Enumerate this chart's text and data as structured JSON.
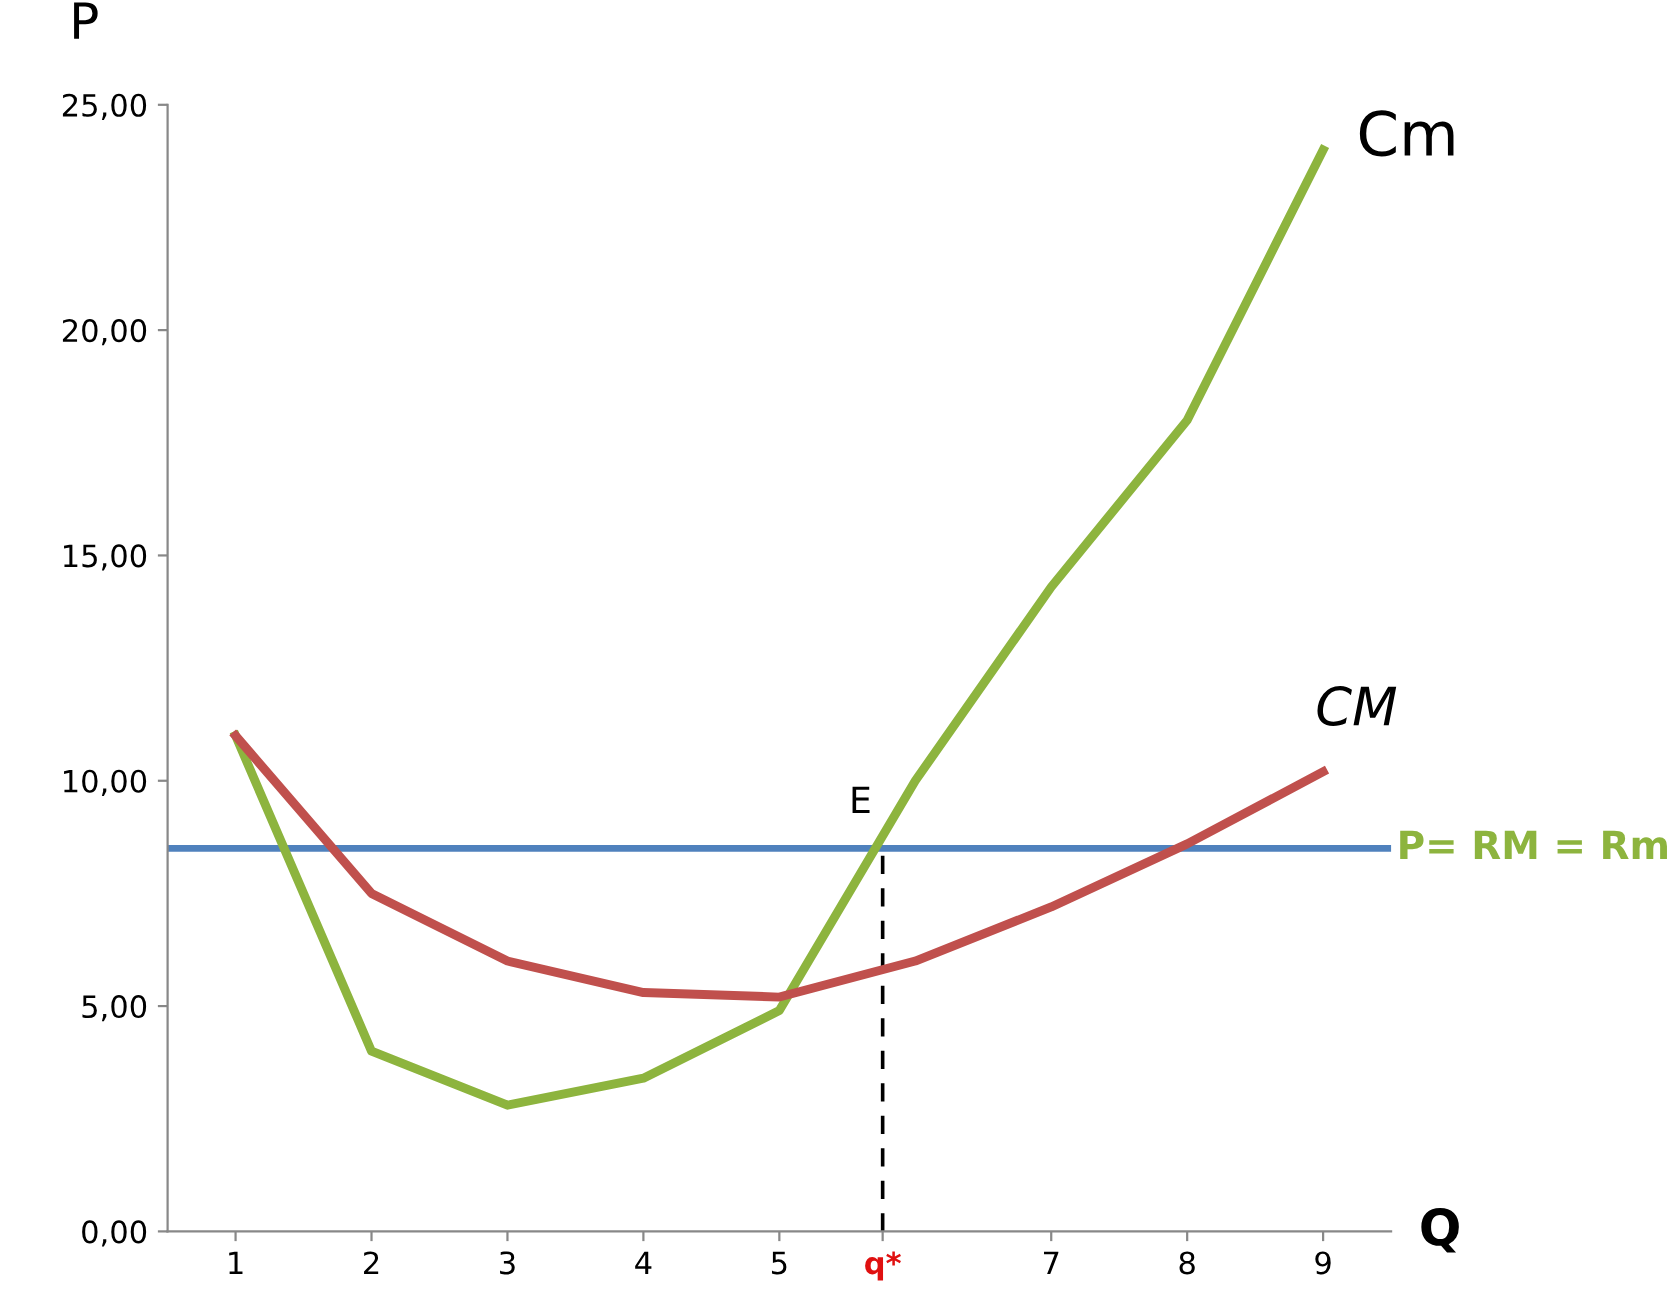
{
  "chart_data": {
    "type": "line",
    "x": [
      1,
      2,
      3,
      4,
      5,
      6,
      7,
      8,
      9
    ],
    "xlabel": "Q",
    "ylabel": "P",
    "xlim": [
      0.5,
      9.5
    ],
    "xticks": [
      1,
      2,
      3,
      4,
      5,
      {
        "value": 5.76,
        "label": "q*"
      },
      7,
      8,
      9
    ],
    "ylim": [
      0,
      25
    ],
    "yticks": [
      {
        "value": 0,
        "label": "0,00"
      },
      {
        "value": 5,
        "label": "5,00"
      },
      {
        "value": 10,
        "label": "10,00"
      },
      {
        "value": 15,
        "label": "15,00"
      },
      {
        "value": 20,
        "label": "20,00"
      },
      {
        "value": 25,
        "label": "25,00"
      }
    ],
    "series": [
      {
        "name": "Cm",
        "color": "#8db43e",
        "values": [
          11,
          4,
          2.8,
          3.4,
          4.9,
          10,
          14.3,
          18,
          24
        ]
      },
      {
        "name": "CM",
        "color": "#c0504d",
        "values": [
          11,
          7.5,
          6,
          5.3,
          5.2,
          6,
          7.2,
          8.6,
          10.2
        ]
      },
      {
        "type": "line",
        "x": [
          5.76,
          5.76
        ],
        "values": [
          0,
          8.5
        ],
        "color": "#000000",
        "line_style": "dashed"
      }
    ],
    "ref_lines": [
      {
        "axis": "y",
        "value": 8.5,
        "label": "P= RM = Rm",
        "color": "#4f81bd"
      }
    ],
    "annotations": [
      {
        "text": "E",
        "x": 5.76,
        "y": 8.5
      }
    ],
    "grid": false,
    "legend": false
  }
}
